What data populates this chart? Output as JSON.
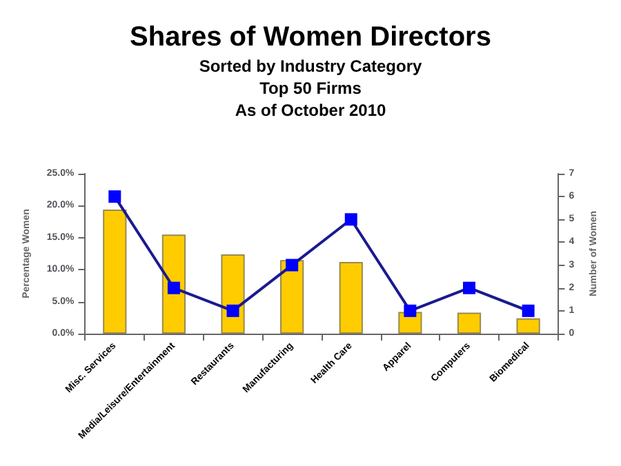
{
  "chart_data": {
    "type": "bar",
    "title": "Shares of Women Directors",
    "subtitle": "Sorted by Industry Category\nTop 50 Firms\nAs of October 2010",
    "ylabel": "Percentage Women",
    "y2label": "Number of Women",
    "categories": [
      "Misc. Services",
      "Media/Leisure/Entertainment",
      "Restaurants",
      "Manufacturing",
      "Health Care",
      "Apparel",
      "Computers",
      "Biomedical"
    ],
    "series": [
      {
        "color": "#ffcc00",
        "values": [
          19.4,
          15.5,
          12.4,
          11.5,
          11.2,
          3.4,
          3.3,
          2.4
        ]
      },
      {
        "type": "line",
        "axis": "y2",
        "color": "#0000ff",
        "marker": "square",
        "values": [
          6,
          2,
          1,
          3,
          5,
          1,
          2,
          1
        ]
      }
    ],
    "ylim": [
      0,
      25
    ],
    "yticks": [
      {
        "value": 0,
        "label": "0.0%"
      },
      {
        "value": 5,
        "label": "5.0%"
      },
      {
        "value": 10,
        "label": "10.0%"
      },
      {
        "value": 15,
        "label": "15.0%"
      },
      {
        "value": 20,
        "label": "20.0%"
      },
      {
        "value": 25,
        "label": "25.0%"
      }
    ],
    "y2lim": [
      0,
      7
    ],
    "y2ticks": [
      0,
      1,
      2,
      3,
      4,
      5,
      6,
      7
    ],
    "grid": false
  }
}
